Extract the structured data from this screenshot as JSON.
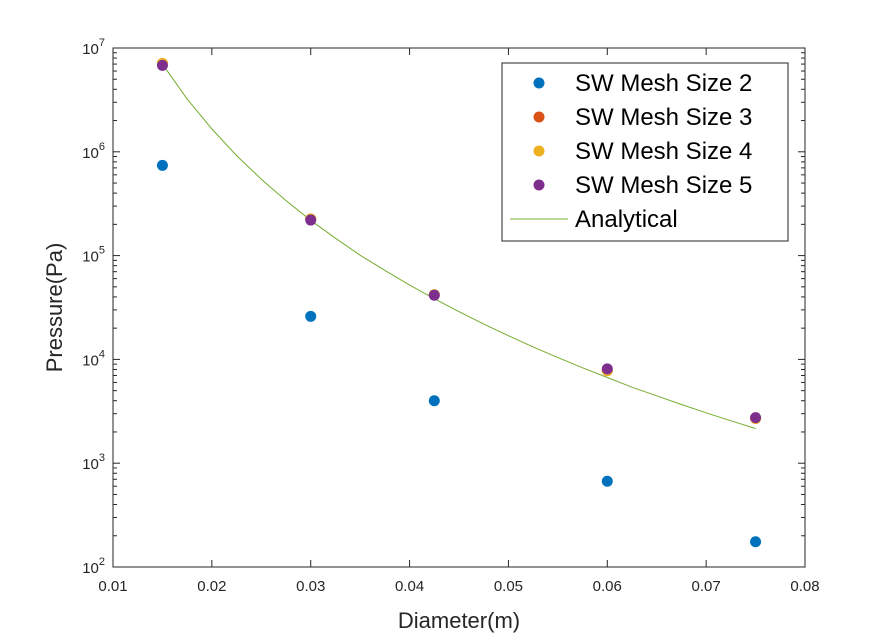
{
  "chart_data": {
    "type": "scatter",
    "xlabel": "Diameter(m)",
    "ylabel": "Pressure(Pa)",
    "xlim": [
      0.01,
      0.08
    ],
    "ylim": [
      100,
      10000000
    ],
    "yscale": "log",
    "grid": false,
    "legend_position": "top-right",
    "x_ticks": [
      "0.01",
      "0.02",
      "0.03",
      "0.04",
      "0.05",
      "0.06",
      "0.07",
      "0.08"
    ],
    "y_ticks": [
      {
        "base": "10",
        "exp": "2",
        "value": 100
      },
      {
        "base": "10",
        "exp": "3",
        "value": 1000
      },
      {
        "base": "10",
        "exp": "4",
        "value": 10000
      },
      {
        "base": "10",
        "exp": "5",
        "value": 100000
      },
      {
        "base": "10",
        "exp": "6",
        "value": 1000000
      },
      {
        "base": "10",
        "exp": "7",
        "value": 10000000
      }
    ],
    "series": [
      {
        "name": "SW Mesh Size 2",
        "mode": "markers",
        "color": "#0072BD",
        "x": [
          0.015,
          0.03,
          0.0425,
          0.06,
          0.075
        ],
        "y": [
          740000,
          26000,
          4000,
          670,
          175
        ]
      },
      {
        "name": "SW Mesh Size 3",
        "mode": "markers",
        "color": "#D95319",
        "x": [
          0.015,
          0.03,
          0.0425,
          0.06,
          0.075
        ],
        "y": [
          7100000,
          225000,
          42000,
          7800,
          2700
        ]
      },
      {
        "name": "SW Mesh Size 4",
        "mode": "markers",
        "color": "#EDB120",
        "x": [
          0.015,
          0.03,
          0.0425,
          0.06,
          0.075
        ],
        "y": [
          7100000,
          225000,
          42000,
          7800,
          2700
        ]
      },
      {
        "name": "SW Mesh Size 5",
        "mode": "markers",
        "color": "#7E2F8E",
        "x": [
          0.015,
          0.03,
          0.0425,
          0.06,
          0.075
        ],
        "y": [
          6800000,
          220000,
          41500,
          8100,
          2750
        ]
      },
      {
        "name": "Analytical",
        "mode": "line",
        "color": "#77AC30",
        "x": [
          0.015,
          0.0175,
          0.02,
          0.0225,
          0.025,
          0.0275,
          0.03,
          0.0325,
          0.035,
          0.0375,
          0.04,
          0.0425,
          0.045,
          0.0475,
          0.05,
          0.0525,
          0.055,
          0.0575,
          0.06,
          0.0625,
          0.065,
          0.0675,
          0.07,
          0.0725,
          0.075
        ],
        "y": [
          7000000,
          3230000,
          1660000,
          920000,
          544000,
          339000,
          219000,
          147000,
          101000,
          72000,
          52000,
          38400,
          28800,
          21900,
          16900,
          13200,
          10400,
          8300,
          6700,
          5400,
          4460,
          3680,
          3060,
          2560,
          2160
        ]
      }
    ]
  }
}
